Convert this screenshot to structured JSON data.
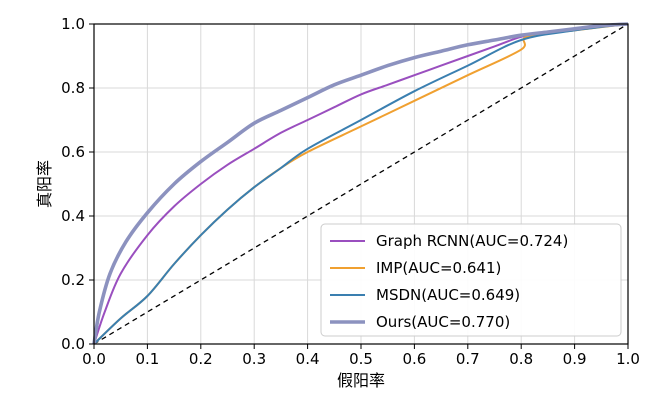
{
  "chart_data": {
    "type": "line",
    "title": "",
    "xlabel": "假阳率",
    "ylabel": "真阳率",
    "xlim": [
      0,
      1
    ],
    "ylim": [
      0,
      1
    ],
    "xticks": [
      "0.0",
      "0.1",
      "0.2",
      "0.3",
      "0.4",
      "0.5",
      "0.6",
      "0.7",
      "0.8",
      "0.9",
      "1.0"
    ],
    "yticks": [
      "0.0",
      "0.2",
      "0.4",
      "0.6",
      "0.8",
      "1.0"
    ],
    "grid": true,
    "legend_position": "bottom-right",
    "series": [
      {
        "name": "Graph RCNN(AUC=0.724)",
        "color": "#9a4fbf",
        "points": [
          [
            0,
            0
          ],
          [
            0.02,
            0.1
          ],
          [
            0.05,
            0.22
          ],
          [
            0.1,
            0.34
          ],
          [
            0.15,
            0.43
          ],
          [
            0.2,
            0.5
          ],
          [
            0.25,
            0.56
          ],
          [
            0.3,
            0.61
          ],
          [
            0.35,
            0.66
          ],
          [
            0.4,
            0.7
          ],
          [
            0.45,
            0.74
          ],
          [
            0.5,
            0.78
          ],
          [
            0.55,
            0.81
          ],
          [
            0.6,
            0.84
          ],
          [
            0.65,
            0.87
          ],
          [
            0.7,
            0.9
          ],
          [
            0.75,
            0.93
          ],
          [
            0.8,
            0.96
          ],
          [
            0.85,
            0.975
          ],
          [
            0.9,
            0.985
          ],
          [
            0.95,
            0.995
          ],
          [
            1,
            1
          ]
        ]
      },
      {
        "name": "IMP(AUC=0.641)",
        "color": "#f0a030",
        "points": [
          [
            0,
            0
          ],
          [
            0.05,
            0.08
          ],
          [
            0.1,
            0.15
          ],
          [
            0.15,
            0.25
          ],
          [
            0.2,
            0.34
          ],
          [
            0.25,
            0.42
          ],
          [
            0.3,
            0.49
          ],
          [
            0.35,
            0.55
          ],
          [
            0.4,
            0.6
          ],
          [
            0.5,
            0.68
          ],
          [
            0.6,
            0.76
          ],
          [
            0.7,
            0.84
          ],
          [
            0.8,
            0.92
          ],
          [
            0.81,
            0.96
          ],
          [
            0.9,
            0.98
          ],
          [
            1,
            1
          ]
        ]
      },
      {
        "name": "MSDN(AUC=0.649)",
        "color": "#3a7fb0",
        "points": [
          [
            0,
            0
          ],
          [
            0.05,
            0.08
          ],
          [
            0.1,
            0.15
          ],
          [
            0.15,
            0.25
          ],
          [
            0.2,
            0.34
          ],
          [
            0.25,
            0.42
          ],
          [
            0.3,
            0.49
          ],
          [
            0.35,
            0.55
          ],
          [
            0.4,
            0.61
          ],
          [
            0.5,
            0.7
          ],
          [
            0.6,
            0.79
          ],
          [
            0.7,
            0.87
          ],
          [
            0.8,
            0.95
          ],
          [
            0.9,
            0.98
          ],
          [
            1,
            1
          ]
        ]
      },
      {
        "name": "Ours(AUC=0.770)",
        "color": "#8c92bf",
        "points": [
          [
            0,
            0
          ],
          [
            0.01,
            0.1
          ],
          [
            0.03,
            0.22
          ],
          [
            0.06,
            0.32
          ],
          [
            0.1,
            0.41
          ],
          [
            0.15,
            0.5
          ],
          [
            0.2,
            0.57
          ],
          [
            0.25,
            0.63
          ],
          [
            0.3,
            0.69
          ],
          [
            0.35,
            0.73
          ],
          [
            0.4,
            0.77
          ],
          [
            0.45,
            0.81
          ],
          [
            0.5,
            0.84
          ],
          [
            0.55,
            0.87
          ],
          [
            0.6,
            0.895
          ],
          [
            0.65,
            0.915
          ],
          [
            0.7,
            0.935
          ],
          [
            0.75,
            0.95
          ],
          [
            0.8,
            0.965
          ],
          [
            0.85,
            0.975
          ],
          [
            0.9,
            0.985
          ],
          [
            0.95,
            0.995
          ],
          [
            1,
            1
          ]
        ]
      }
    ],
    "reference_line": {
      "points": [
        [
          0,
          0
        ],
        [
          1,
          1
        ]
      ],
      "color": "#000000",
      "style": "dashed"
    }
  }
}
